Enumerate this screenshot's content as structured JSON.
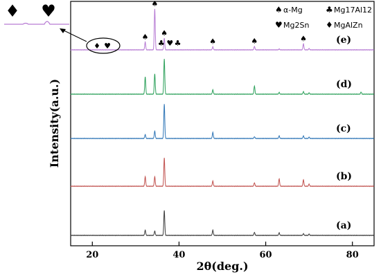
{
  "chart_data": {
    "type": "line",
    "xlabel": "2θ(deg.)",
    "ylabel": "Intensity(a.u.)",
    "xlim": [
      15,
      85
    ],
    "xticks": [
      20,
      40,
      60,
      80
    ],
    "x_tick_labels": [
      "20",
      "40",
      "60",
      "80"
    ],
    "grid": false,
    "legend_position": "top-right",
    "legend": [
      {
        "symbol": "♠",
        "label": "α-Mg"
      },
      {
        "symbol": "♣",
        "label": "Mg17Al12"
      },
      {
        "symbol": "♥",
        "label": "Mg2Sn"
      },
      {
        "symbol": "♦",
        "label": "MgAlZn"
      }
    ],
    "series": [
      {
        "name": "(a)",
        "color": "#3a3a3a",
        "peaks": [
          [
            32.2,
            0.12
          ],
          [
            34.4,
            0.1
          ],
          [
            36.6,
            0.58
          ],
          [
            47.8,
            0.12
          ],
          [
            57.4,
            0.07
          ],
          [
            63.1,
            0.06
          ],
          [
            68.7,
            0.04
          ],
          [
            70.0,
            0.03
          ]
        ]
      },
      {
        "name": "(b)",
        "color": "#c0504d",
        "peaks": [
          [
            32.2,
            0.22
          ],
          [
            34.4,
            0.22
          ],
          [
            36.6,
            0.66
          ],
          [
            47.8,
            0.12
          ],
          [
            57.4,
            0.08
          ],
          [
            63.1,
            0.17
          ],
          [
            68.7,
            0.15
          ],
          [
            70.0,
            0.05
          ]
        ]
      },
      {
        "name": "(c)",
        "color": "#2e75b6",
        "peaks": [
          [
            32.2,
            0.09
          ],
          [
            34.4,
            0.17
          ],
          [
            36.6,
            0.8
          ],
          [
            47.8,
            0.14
          ],
          [
            57.4,
            0.04
          ],
          [
            63.1,
            0.06
          ],
          [
            68.7,
            0.06
          ],
          [
            70.0,
            0.03
          ]
        ]
      },
      {
        "name": "(d)",
        "color": "#2ca05a",
        "peaks": [
          [
            32.2,
            0.4
          ],
          [
            34.4,
            0.47
          ],
          [
            36.6,
            0.82
          ],
          [
            47.8,
            0.1
          ],
          [
            57.4,
            0.19
          ],
          [
            63.1,
            0.04
          ],
          [
            68.7,
            0.06
          ],
          [
            70.0,
            0.03
          ],
          [
            82.0,
            0.05
          ]
        ]
      },
      {
        "name": "(e)",
        "color": "#b67ad3",
        "peaks": [
          [
            32.2,
            0.18
          ],
          [
            34.4,
            0.95
          ],
          [
            36.6,
            0.27
          ],
          [
            47.8,
            0.07
          ],
          [
            57.4,
            0.08
          ],
          [
            63.1,
            0.02
          ],
          [
            68.7,
            0.14
          ],
          [
            70.0,
            0.03
          ]
        ]
      }
    ],
    "peak_annotations": [
      {
        "symbol": "♠",
        "x": 32.2
      },
      {
        "symbol": "♠",
        "x": 34.4
      },
      {
        "symbol": "♣",
        "x": 35.9
      },
      {
        "symbol": "♠",
        "x": 36.6
      },
      {
        "symbol": "♥",
        "x": 37.9
      },
      {
        "symbol": "♣",
        "x": 39.7
      },
      {
        "symbol": "♠",
        "x": 47.8
      },
      {
        "symbol": "♠",
        "x": 57.4
      },
      {
        "symbol": "♠",
        "x": 68.7
      }
    ],
    "inset": {
      "circle_symbols": [
        "♦",
        "♥"
      ],
      "zoom_symbols": [
        "♦",
        "♥"
      ]
    }
  }
}
